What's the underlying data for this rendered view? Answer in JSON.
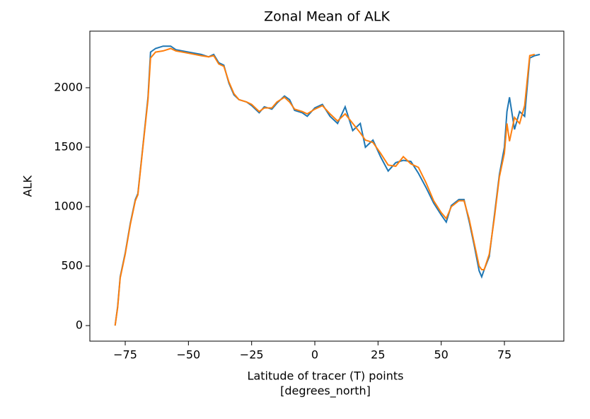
{
  "chart_data": {
    "type": "line",
    "title": "Zonal Mean of ALK",
    "ylabel": "ALK",
    "xlabel": [
      "Latitude of tracer (T) points",
      "[degrees_north]"
    ],
    "x": [
      -79,
      -78,
      -77,
      -75,
      -73,
      -71,
      -70,
      -68,
      -66,
      -65,
      -63,
      -60,
      -57,
      -55,
      -50,
      -45,
      -42,
      -40,
      -38,
      -36,
      -34,
      -32,
      -30,
      -27,
      -25,
      -22,
      -20,
      -17,
      -15,
      -12,
      -10,
      -8,
      -5,
      -3,
      0,
      3,
      6,
      9,
      12,
      15,
      18,
      20,
      23,
      26,
      29,
      32,
      35,
      38,
      41,
      44,
      47,
      50,
      52,
      54,
      57,
      59,
      61,
      63,
      65,
      66,
      67,
      69,
      71,
      73,
      75,
      76,
      77,
      79,
      81,
      83,
      85,
      87,
      89
    ],
    "series": [
      {
        "color": "#1f77b4",
        "values": [
          0,
          160,
          410,
          610,
          860,
          1060,
          1110,
          1510,
          1920,
          2300,
          2330,
          2350,
          2350,
          2320,
          2300,
          2280,
          2260,
          2280,
          2210,
          2190,
          2040,
          1940,
          1900,
          1880,
          1850,
          1790,
          1840,
          1820,
          1870,
          1930,
          1900,
          1810,
          1790,
          1760,
          1830,
          1860,
          1760,
          1700,
          1840,
          1640,
          1700,
          1500,
          1560,
          1420,
          1300,
          1370,
          1390,
          1380,
          1280,
          1160,
          1030,
          930,
          870,
          1010,
          1060,
          1060,
          880,
          680,
          460,
          410,
          470,
          580,
          920,
          1270,
          1500,
          1800,
          1920,
          1650,
          1800,
          1760,
          2250,
          2270,
          2280
        ]
      },
      {
        "color": "#ff7f0e",
        "values": [
          0,
          150,
          400,
          600,
          850,
          1050,
          1100,
          1500,
          1900,
          2250,
          2300,
          2310,
          2330,
          2310,
          2290,
          2270,
          2260,
          2270,
          2200,
          2180,
          2050,
          1950,
          1900,
          1880,
          1860,
          1800,
          1830,
          1830,
          1880,
          1920,
          1880,
          1820,
          1800,
          1780,
          1820,
          1850,
          1780,
          1720,
          1780,
          1700,
          1620,
          1560,
          1540,
          1450,
          1350,
          1340,
          1420,
          1360,
          1330,
          1200,
          1050,
          950,
          900,
          1000,
          1050,
          1050,
          900,
          700,
          500,
          470,
          470,
          600,
          900,
          1250,
          1450,
          1700,
          1550,
          1750,
          1700,
          1850,
          2270,
          2280,
          null
        ]
      }
    ],
    "xlim": [
      -89,
      98.5
    ],
    "ylim": [
      -131,
      2476
    ],
    "xticks": [
      {
        "value": -75,
        "label": "−75"
      },
      {
        "value": -50,
        "label": "−50"
      },
      {
        "value": -25,
        "label": "−25"
      },
      0,
      25,
      50,
      75
    ],
    "yticks": [
      0,
      500,
      1000,
      1500,
      2000
    ]
  }
}
